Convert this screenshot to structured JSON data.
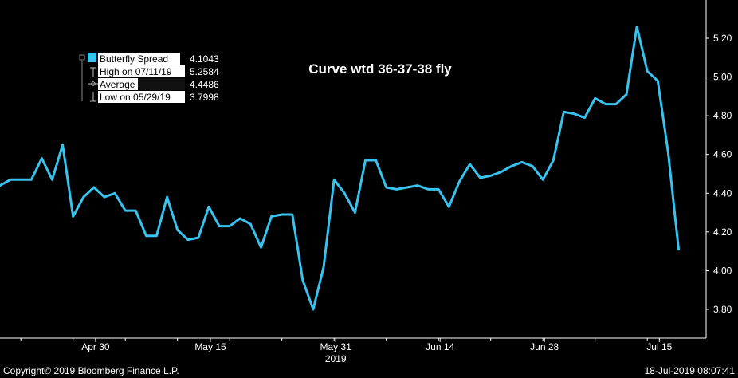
{
  "colors": {
    "background": "#000000",
    "series": "#37c3f0",
    "axis": "#ffffff",
    "legend_bg": "#ffffff",
    "legend_avg_bg": "#000000"
  },
  "chart_data": {
    "type": "line",
    "title": "Curve wtd 36-37-38 fly",
    "ylim": [
      3.7,
      5.35
    ],
    "yticks": [
      "3.80",
      "4.00",
      "4.20",
      "4.40",
      "4.60",
      "4.80",
      "5.00",
      "5.20"
    ],
    "ytick_values": [
      3.8,
      4.0,
      4.2,
      4.4,
      4.6,
      4.8,
      5.0,
      5.2
    ],
    "xticks": [
      {
        "label": "Apr 30",
        "index": 9
      },
      {
        "label": "May 15",
        "index": 20
      },
      {
        "label": "May 31",
        "index": 32
      },
      {
        "label": "Jun 14",
        "index": 42
      },
      {
        "label": "Jun 28",
        "index": 52
      },
      {
        "label": "Jul 15",
        "index": 63
      }
    ],
    "year_label": "2019",
    "year_index": 32,
    "legend": {
      "series": {
        "label": "Butterfly Spread",
        "value": "4.1043"
      },
      "high": {
        "label": "High on 07/11/19",
        "value": "5.2584"
      },
      "average": {
        "label": "Average",
        "value": "4.4486"
      },
      "low": {
        "label": "Low on 05/29/19",
        "value": "3.7998"
      }
    },
    "series": [
      {
        "name": "Butterfly Spread",
        "values": [
          4.44,
          4.47,
          4.47,
          4.47,
          4.58,
          4.47,
          4.65,
          4.28,
          4.38,
          4.43,
          4.38,
          4.4,
          4.31,
          4.31,
          4.18,
          4.18,
          4.38,
          4.21,
          4.16,
          4.17,
          4.33,
          4.23,
          4.23,
          4.27,
          4.24,
          4.12,
          4.28,
          4.29,
          4.29,
          3.95,
          3.8,
          4.02,
          4.47,
          4.4,
          4.3,
          4.57,
          4.57,
          4.43,
          4.42,
          4.43,
          4.44,
          4.42,
          4.42,
          4.33,
          4.46,
          4.55,
          4.48,
          4.49,
          4.51,
          4.54,
          4.56,
          4.54,
          4.47,
          4.57,
          4.82,
          4.81,
          4.79,
          4.89,
          4.86,
          4.86,
          4.91,
          5.26,
          5.03,
          4.98,
          4.61,
          4.11
        ]
      }
    ],
    "grid": false
  },
  "footer": {
    "copyright": "Copyright© 2019 Bloomberg Finance L.P.",
    "timestamp": "18-Jul-2019 08:07:41"
  }
}
